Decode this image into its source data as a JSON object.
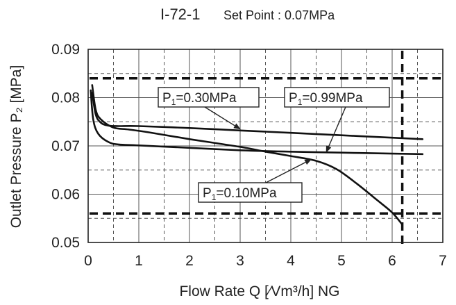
{
  "chart_data": {
    "type": "line",
    "title": "I-72-1",
    "subtitle": "Set Point : 0.07MPa",
    "xlabel": "Flow Rate  Q  [∕Vm³/h] NG",
    "ylabel": "Outlet  Pressure  P₂ [MPa]",
    "xlim": [
      0,
      7
    ],
    "ylim": [
      0.05,
      0.09
    ],
    "x_ticks": [
      "0",
      "1",
      "2",
      "3",
      "4",
      "5",
      "6",
      "7"
    ],
    "y_ticks": [
      "0.05",
      "0.06",
      "0.07",
      "0.08",
      "0.09"
    ],
    "grid": true,
    "series": [
      {
        "name": "P1=0.30MPa",
        "label_main": "P",
        "label_sub": "1",
        "label_rest": "=0.30MPa",
        "x": [
          0.08,
          0.15,
          0.25,
          0.4,
          0.6,
          1.0,
          2.0,
          3.0,
          4.0,
          5.0,
          6.0,
          6.6
        ],
        "y": [
          0.081,
          0.0765,
          0.0748,
          0.0742,
          0.0741,
          0.0741,
          0.0737,
          0.0732,
          0.0727,
          0.0722,
          0.0717,
          0.0714
        ]
      },
      {
        "name": "P1=0.99MPa",
        "label_main": "P",
        "label_sub": "1",
        "label_rest": "=0.99MPa",
        "x": [
          0.05,
          0.1,
          0.2,
          0.4,
          0.6,
          1.0,
          2.0,
          3.0,
          4.0,
          5.0,
          6.0,
          6.6
        ],
        "y": [
          0.0815,
          0.0755,
          0.0725,
          0.0708,
          0.0703,
          0.0701,
          0.0696,
          0.0691,
          0.0688,
          0.0686,
          0.0684,
          0.0683
        ]
      },
      {
        "name": "P1=0.10MPa",
        "label_main": "P",
        "label_sub": "1",
        "label_rest": "=0.10MPa",
        "x": [
          0.08,
          0.15,
          0.25,
          0.5,
          0.8,
          1.2,
          2.0,
          3.0,
          3.5,
          4.0,
          4.5,
          4.9,
          5.3,
          5.7,
          6.0,
          6.2
        ],
        "y": [
          0.0826,
          0.0775,
          0.0755,
          0.0738,
          0.0734,
          0.0728,
          0.0714,
          0.0698,
          0.0688,
          0.0679,
          0.0669,
          0.0652,
          0.0622,
          0.0588,
          0.0562,
          0.0537
        ]
      }
    ],
    "reference_lines": [
      {
        "orientation": "horizontal",
        "value": 0.084,
        "style": "dashed"
      },
      {
        "orientation": "horizontal",
        "value": 0.056,
        "style": "dashed"
      },
      {
        "orientation": "vertical",
        "value": 6.2,
        "style": "dashed"
      }
    ],
    "annotations": [
      {
        "series": 0,
        "text": "P1=0.30MPa",
        "arrow_to": [
          3.0,
          0.0735
        ]
      },
      {
        "series": 1,
        "text": "P1=0.99MPa",
        "arrow_to": [
          4.7,
          0.0687
        ]
      },
      {
        "series": 2,
        "text": "P1=0.10MPa",
        "arrow_to": [
          4.4,
          0.0672
        ]
      }
    ]
  }
}
